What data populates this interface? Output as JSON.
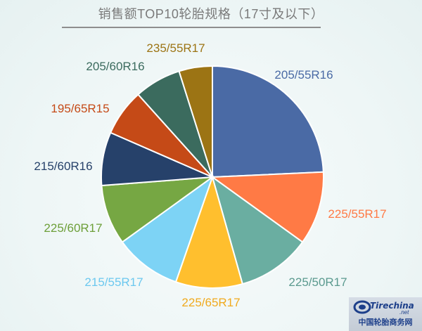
{
  "title": "销售额TOP10轮胎规格（17寸及以下）",
  "chart_data": {
    "type": "pie",
    "categories": [
      "205/55R16",
      "225/55R17",
      "225/50R17",
      "225/65R17",
      "215/55R17",
      "225/60R17",
      "215/60R16",
      "195/65R15",
      "205/60R16",
      "235/55R17"
    ],
    "values": [
      25,
      11,
      11,
      10,
      10,
      9,
      8,
      7,
      7,
      5
    ],
    "colors": [
      "#4a6aa5",
      "#ff7a45",
      "#6aaea1",
      "#ffbf2e",
      "#7dd3f5",
      "#76a743",
      "#26416a",
      "#c54a17",
      "#3b6b5e",
      "#9c7414"
    ],
    "label_colors": [
      "#4a6aa5",
      "#ff7a45",
      "#5b9a8f",
      "#f0aa1e",
      "#6cc8ef",
      "#6d9f39",
      "#26416a",
      "#c54a17",
      "#3b6b5e",
      "#9c7414"
    ]
  },
  "logo": {
    "brand": "Tirechina",
    "suffix": ".net",
    "caption": "中国轮胎商务网"
  }
}
